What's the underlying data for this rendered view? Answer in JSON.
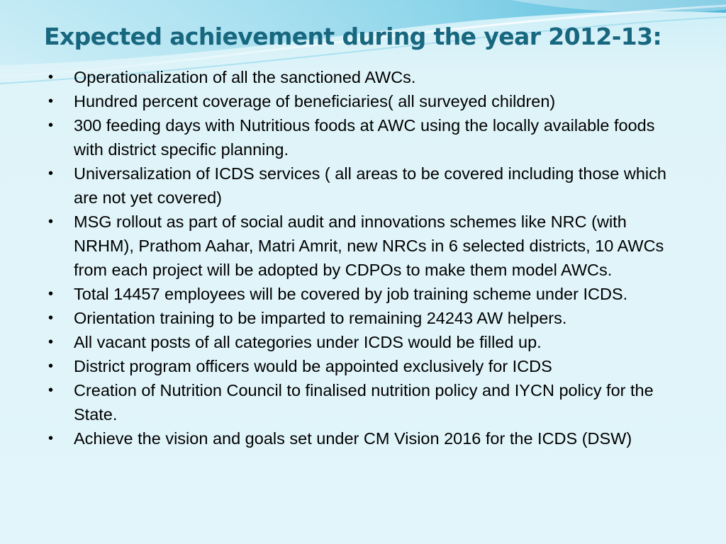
{
  "slide": {
    "title": "Expected achievement during the year 2012-13:",
    "bullet_glyph": "•",
    "bullets": [
      "Operationalization of all the sanctioned AWCs.",
      "Hundred percent coverage of beneficiaries( all  surveyed children)",
      "300 feeding days with Nutritious foods at AWC using the locally available foods with district specific planning.",
      "Universalization of ICDS services ( all areas to be covered including those which are not yet covered)",
      "MSG rollout as part of social audit and innovations schemes like NRC (with NRHM), Prathom Aahar, Matri Amrit, new NRCs in 6 selected districts, 10 AWCs from each project will be adopted by CDPOs to make them model AWCs.",
      "Total 14457 employees will be covered by job training scheme under ICDS.",
      "Orientation training to be imparted to remaining 24243 AW helpers.",
      "All vacant posts of all categories under ICDS would be filled up.",
      "District program officers would be appointed exclusively for ICDS",
      "Creation of Nutrition Council to finalised nutrition policy and IYCN policy for the State.",
      "Achieve the vision and goals set under CM Vision 2016 for the ICDS (DSW)"
    ]
  },
  "theme": {
    "title_color": "#17677f",
    "background_color": "#dff4f9",
    "swoosh_color": "#5fc3e0"
  }
}
